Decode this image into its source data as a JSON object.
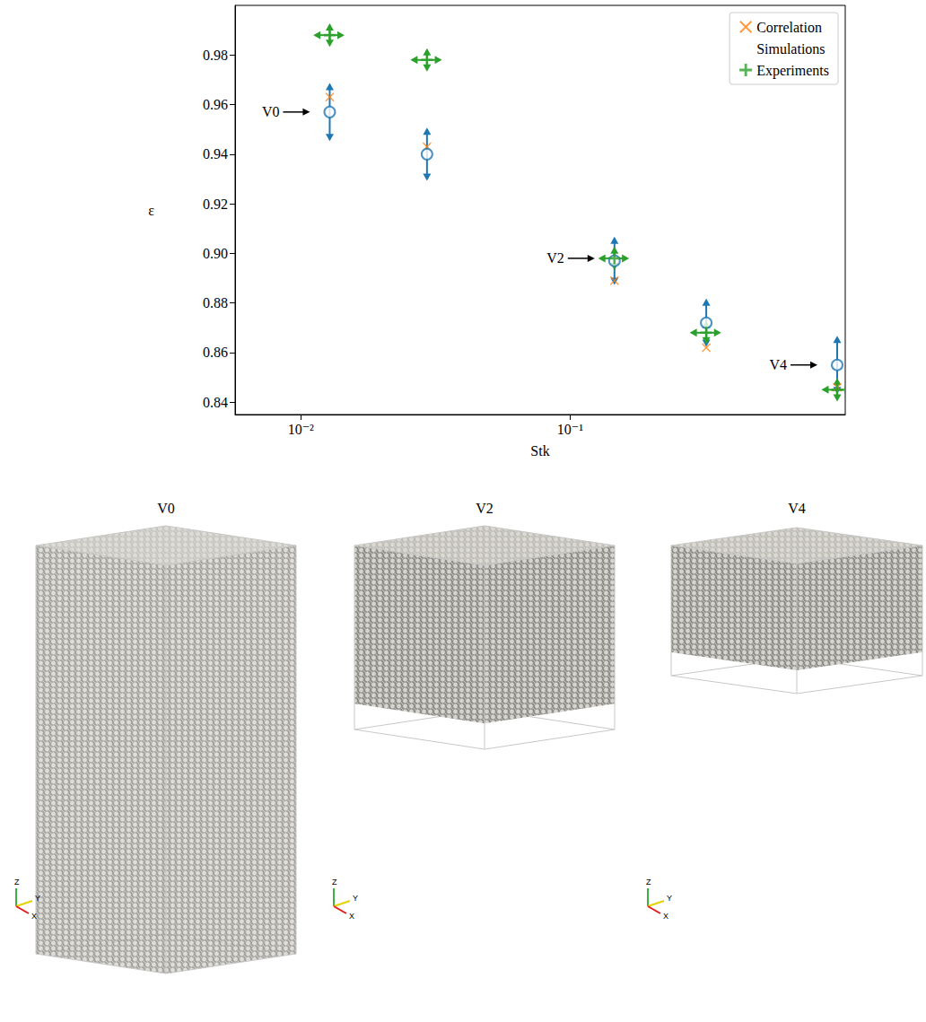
{
  "chart_data": {
    "type": "scatter",
    "x_label": "Stk",
    "y_label": "ε",
    "log": "x",
    "grid": false,
    "legend": "upper right",
    "xlim": [
      0.0057,
      1.05
    ],
    "xticks": [
      {
        "value": 0.01,
        "label": "10⁻²"
      },
      {
        "value": 0.1,
        "label": "10⁻¹"
      }
    ],
    "ylim": [
      0.835,
      1.0
    ],
    "yticks": [
      0.84,
      0.86,
      0.88,
      {
        "value": 0.9,
        "label": "0.90"
      },
      0.92,
      0.94,
      0.96,
      0.98
    ],
    "series": [
      {
        "name": "Correlation",
        "color": "#ff7f0e",
        "marker": "x",
        "x": [
          0.0128,
          0.0294,
          0.146,
          0.32,
          0.98
        ],
        "values": [
          0.963,
          0.943,
          0.889,
          0.862,
          0.846
        ]
      },
      {
        "name": "Simulations",
        "color": "#1f77b4",
        "marker": "circle",
        "x": [
          0.0128,
          0.0294,
          0.146,
          0.32,
          0.98
        ],
        "values": [
          0.957,
          0.94,
          0.897,
          0.872,
          0.855
        ],
        "y_err": [
          0.011,
          0.01,
          0.009,
          0.009,
          0.011
        ]
      },
      {
        "name": "Experiments",
        "color": "#2ca02c",
        "marker": "plus",
        "x": [
          0.0128,
          0.0294,
          0.146,
          0.32,
          0.98
        ],
        "values": [
          0.988,
          0.978,
          0.898,
          0.868,
          0.845
        ],
        "y_err": [
          0.004,
          0.004,
          0.004,
          0.004,
          0.004
        ],
        "x_err": [
          0.0015,
          0.0035,
          0.017,
          0.038,
          0.11
        ]
      }
    ],
    "annotations": [
      {
        "text": "V0",
        "x": 0.0128,
        "y": 0.957
      },
      {
        "text": "V2",
        "x": 0.146,
        "y": 0.898
      },
      {
        "text": "V4",
        "x": 0.98,
        "y": 0.855
      }
    ]
  },
  "panels": [
    {
      "title": "V0",
      "axis_labels": [
        "Z",
        "Y",
        "X"
      ]
    },
    {
      "title": "V2",
      "axis_labels": [
        "Z",
        "Y",
        "X"
      ]
    },
    {
      "title": "V4",
      "axis_labels": [
        "Z",
        "Y",
        "X"
      ]
    }
  ]
}
